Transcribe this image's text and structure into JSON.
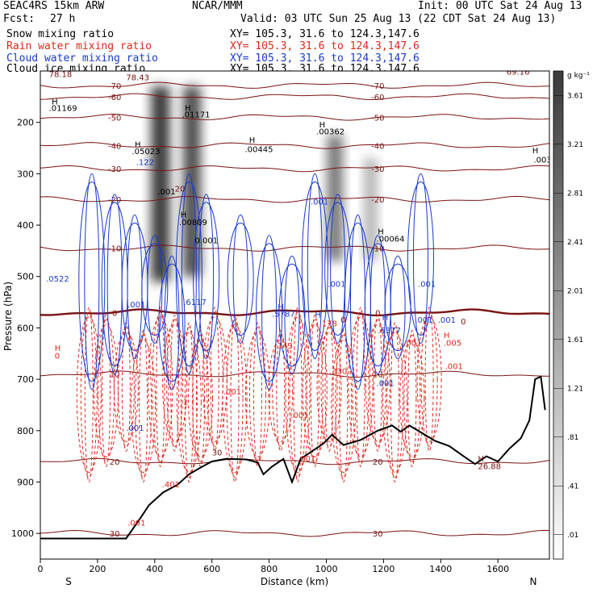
{
  "header": {
    "model": "SEAC4RS 15km ARW",
    "org": "NCAR/MMM",
    "init": "Init: 00 UTC Sat 24 Aug 13",
    "fcst_label": "Fcst:",
    "fcst_value": "27 h",
    "valid": "Valid: 03 UTC Sun 25 Aug 13 (22 CDT Sat 24 Aug 13)"
  },
  "legend": [
    {
      "label": "Snow mixing ratio",
      "xy": "XY= 105.3, 31.6 to 124.3,147.6",
      "color": "#000000"
    },
    {
      "label": "Rain water mixing ratio",
      "xy": "XY= 105.3, 31.6 to 124.3,147.6",
      "color": "#e0281c"
    },
    {
      "label": "Cloud water mixing ratio",
      "xy": "XY= 105.3, 31.6 to 124.3,147.6",
      "color": "#1a3acc"
    },
    {
      "label": "Cloud ice mixing ratio",
      "xy": "XY= 105.3, 31.6 to 124.3,147.6",
      "color": "#000000"
    }
  ],
  "colors": {
    "temperature_contours": "#7a1212",
    "zero_isotherm": "#7a1212",
    "rain": "#e0281c",
    "cloud_water": "#1a3acc",
    "terrain": "#000000"
  },
  "chart_data": {
    "type": "heatmap",
    "xlabel": "Distance (km)",
    "ylabel": "Pressure (hPa)",
    "xlim": [
      0,
      1780
    ],
    "ylim": [
      1050,
      100
    ],
    "x_ticks": [
      0,
      200,
      400,
      600,
      800,
      1000,
      1200,
      1400,
      1600
    ],
    "y_ticks": [
      200,
      300,
      400,
      500,
      600,
      700,
      800,
      900,
      1000
    ],
    "x_end_labels": {
      "left": "S",
      "right": "N"
    },
    "colorbar": {
      "unit": "g kg⁻¹",
      "levels": [
        ".01",
        ".41",
        ".81",
        "1.21",
        "1.61",
        "2.01",
        "2.41",
        "2.81",
        "3.21",
        "3.61"
      ]
    },
    "temperature_isotherms": [
      {
        "label": "-70",
        "p": 128
      },
      {
        "label": "-60",
        "p": 150
      },
      {
        "label": "-50",
        "p": 190
      },
      {
        "label": "-40",
        "p": 245
      },
      {
        "label": "-30",
        "p": 290
      },
      {
        "label": "-20",
        "p": 350
      },
      {
        "label": "-10",
        "p": 445
      },
      {
        "label": "0",
        "p": 570
      },
      {
        "label": "10",
        "p": 690
      },
      {
        "label": "20",
        "p": 860
      },
      {
        "label": "30",
        "p": 1000
      }
    ],
    "terrain_profile": [
      [
        0,
        1010
      ],
      [
        300,
        1010
      ],
      [
        350,
        970
      ],
      [
        380,
        945
      ],
      [
        430,
        920
      ],
      [
        480,
        905
      ],
      [
        520,
        885
      ],
      [
        560,
        872
      ],
      [
        600,
        860
      ],
      [
        650,
        855
      ],
      [
        720,
        856
      ],
      [
        760,
        862
      ],
      [
        780,
        885
      ],
      [
        810,
        870
      ],
      [
        850,
        855
      ],
      [
        880,
        900
      ],
      [
        910,
        855
      ],
      [
        950,
        840
      ],
      [
        990,
        825
      ],
      [
        1020,
        808
      ],
      [
        1060,
        828
      ],
      [
        1120,
        818
      ],
      [
        1180,
        800
      ],
      [
        1230,
        790
      ],
      [
        1260,
        802
      ],
      [
        1290,
        790
      ],
      [
        1330,
        803
      ],
      [
        1380,
        820
      ],
      [
        1430,
        830
      ],
      [
        1480,
        850
      ],
      [
        1520,
        865
      ],
      [
        1560,
        850
      ],
      [
        1600,
        860
      ],
      [
        1640,
        835
      ],
      [
        1680,
        815
      ],
      [
        1710,
        780
      ],
      [
        1730,
        700
      ],
      [
        1750,
        695
      ],
      [
        1765,
        760
      ]
    ],
    "snow_columns": [
      {
        "x": 420,
        "top": 130,
        "bottom": 510,
        "max": 3.61
      },
      {
        "x": 530,
        "top": 130,
        "bottom": 500,
        "max": 3.21
      },
      {
        "x": 1030,
        "top": 225,
        "bottom": 470,
        "max": 2.41
      },
      {
        "x": 1155,
        "top": 270,
        "bottom": 470,
        "max": 1.21
      }
    ],
    "annotations": [
      {
        "text": "78.18",
        "x": 30,
        "p": 112,
        "color": "#7a1212"
      },
      {
        "text": "78.43",
        "x": 300,
        "p": 118,
        "color": "#7a1212"
      },
      {
        "text": "69.16",
        "x": 1630,
        "p": 107,
        "color": "#7a1212"
      },
      {
        "text": "H",
        "x": 40,
        "p": 165,
        "color": "#000000"
      },
      {
        "text": ".01169",
        "x": 30,
        "p": 178,
        "color": "#000000"
      },
      {
        "text": "H",
        "x": 330,
        "p": 248,
        "color": "#000000"
      },
      {
        "text": ".05023",
        "x": 320,
        "p": 262,
        "color": "#000000"
      },
      {
        "text": ".122",
        "x": 335,
        "p": 283,
        "color": "#1a3acc"
      },
      {
        "text": "H",
        "x": 505,
        "p": 178,
        "color": "#000000"
      },
      {
        "text": ".01171",
        "x": 495,
        "p": 190,
        "color": "#000000"
      },
      {
        "text": ".001",
        "x": 410,
        "p": 340,
        "color": "#000000"
      },
      {
        "text": "H",
        "x": 490,
        "p": 385,
        "color": "#000000"
      },
      {
        "text": ".00809",
        "x": 485,
        "p": 400,
        "color": "#000000"
      },
      {
        "text": "0.001",
        "x": 540,
        "p": 435,
        "color": "#000000"
      },
      {
        "text": "H",
        "x": 730,
        "p": 240,
        "color": "#000000"
      },
      {
        "text": ".00445",
        "x": 715,
        "p": 258,
        "color": "#000000"
      },
      {
        "text": "H",
        "x": 975,
        "p": 210,
        "color": "#000000"
      },
      {
        "text": ".00362",
        "x": 965,
        "p": 223,
        "color": "#000000"
      },
      {
        "text": "H",
        "x": 1720,
        "p": 260,
        "color": "#000000"
      },
      {
        "text": ".003",
        "x": 1725,
        "p": 278,
        "color": "#000000"
      },
      {
        "text": "H",
        "x": 1180,
        "p": 418,
        "color": "#000000"
      },
      {
        "text": ".00064",
        "x": 1175,
        "p": 432,
        "color": "#000000"
      },
      {
        "text": ".001",
        "x": 945,
        "p": 360,
        "color": "#1a3acc"
      },
      {
        "text": ".0522",
        "x": 20,
        "p": 510,
        "color": "#1a3acc"
      },
      {
        "text": ".001",
        "x": 305,
        "p": 560,
        "color": "#1a3acc"
      },
      {
        "text": ".6117",
        "x": 500,
        "p": 555,
        "color": "#1a3acc"
      },
      {
        "text": "H",
        "x": 830,
        "p": 565,
        "color": "#1a3acc"
      },
      {
        "text": ".5787",
        "x": 810,
        "p": 578,
        "color": "#1a3acc"
      },
      {
        "text": "H",
        "x": 960,
        "p": 580,
        "color": "#1a3acc"
      },
      {
        "text": ".001",
        "x": 1005,
        "p": 520,
        "color": "#1a3acc"
      },
      {
        "text": ".001",
        "x": 1320,
        "p": 520,
        "color": "#1a3acc"
      },
      {
        "text": "H",
        "x": 1195,
        "p": 585,
        "color": "#1a3acc"
      },
      {
        "text": ".6377",
        "x": 1180,
        "p": 610,
        "color": "#1a3acc"
      },
      {
        "text": ".001",
        "x": 1310,
        "p": 590,
        "color": "#1a3acc"
      },
      {
        "text": ".001",
        "x": 1390,
        "p": 590,
        "color": "#1a3acc"
      },
      {
        "text": ".001",
        "x": 1175,
        "p": 713,
        "color": "#1a3acc"
      },
      {
        "text": ".001",
        "x": 300,
        "p": 800,
        "color": "#1a3acc"
      },
      {
        "text": "H",
        "x": 50,
        "p": 645,
        "color": "#e0281c"
      },
      {
        "text": "0",
        "x": 50,
        "p": 660,
        "color": "#e0281c"
      },
      {
        "text": ".178",
        "x": 975,
        "p": 597,
        "color": "#e0281c"
      },
      {
        "text": ".143",
        "x": 820,
        "p": 640,
        "color": "#e0281c"
      },
      {
        "text": ".330",
        "x": 1010,
        "p": 690,
        "color": "#e0281c"
      },
      {
        "text": "H",
        "x": 1410,
        "p": 620,
        "color": "#e0281c"
      },
      {
        "text": ".005",
        "x": 1410,
        "p": 635,
        "color": "#e0281c"
      },
      {
        "text": ".001",
        "x": 1415,
        "p": 680,
        "color": "#e0281c"
      },
      {
        "text": ".001",
        "x": 1270,
        "p": 635,
        "color": "#e0281c"
      },
      {
        "text": ".001",
        "x": 640,
        "p": 730,
        "color": "#e0281c"
      },
      {
        "text": ".001",
        "x": 875,
        "p": 775,
        "color": "#e0281c"
      },
      {
        "text": ".001",
        "x": 900,
        "p": 860,
        "color": "#e0281c"
      },
      {
        "text": ".001",
        "x": 305,
        "p": 985,
        "color": "#e0281c"
      },
      {
        "text": ".401",
        "x": 425,
        "p": 910,
        "color": "#e0281c"
      },
      {
        "text": ".1",
        "x": 490,
        "p": 750,
        "color": "#e0281c"
      },
      {
        "text": "H",
        "x": 1530,
        "p": 860,
        "color": "#7a1212"
      },
      {
        "text": "26.88",
        "x": 1530,
        "p": 875,
        "color": "#7a1212"
      },
      {
        "text": "0",
        "x": 1470,
        "p": 593,
        "color": "#7a1212"
      },
      {
        "text": "0",
        "x": 1050,
        "p": 590,
        "color": "#7a1212"
      },
      {
        "text": "30",
        "x": 600,
        "p": 848,
        "color": "#7a1212"
      },
      {
        "text": "20",
        "x": 470,
        "p": 335,
        "color": "#7a1212"
      }
    ]
  }
}
